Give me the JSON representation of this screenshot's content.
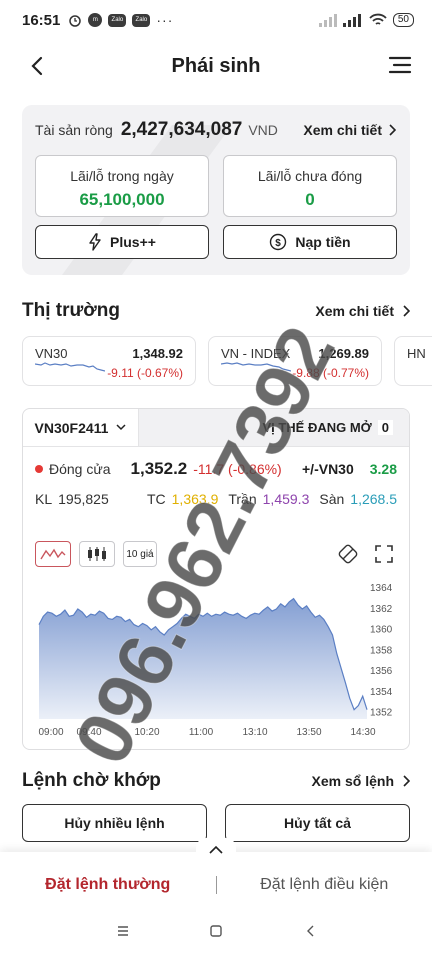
{
  "status_bar": {
    "time": "16:51",
    "battery": "50",
    "zalo_label": "Zalo",
    "more": "···"
  },
  "header": {
    "title": "Phái sinh"
  },
  "assets": {
    "label": "Tài sản ròng",
    "value": "2,427,634,087",
    "unit": "VND",
    "detail_link": "Xem chi tiết",
    "pl_today_label": "Lãi/lỗ trong ngày",
    "pl_today_value": "65,100,000",
    "pl_open_label": "Lãi/lỗ chưa đóng",
    "pl_open_value": "0",
    "plus_button": "Plus++",
    "deposit_button": "Nạp tiền"
  },
  "market": {
    "title": "Thị trường",
    "detail_link": "Xem chi tiết",
    "tickers": [
      {
        "name": "VN30",
        "price": "1,348.92",
        "change": "-9.11 (-0.67%)"
      },
      {
        "name": "VN - INDEX",
        "price": "1,269.89",
        "change": "-9.88 (-0.77%)"
      },
      {
        "name": "HN",
        "price": "",
        "change": ""
      }
    ]
  },
  "derivative": {
    "contract": "VN30F2411",
    "positions_label": "VỊ THẾ ĐANG MỞ",
    "positions_count": "0",
    "close_label": "Đóng cửa",
    "close_value": "1,352.2",
    "close_change": "-11.7 (-0.86%)",
    "basis_label": "+/-VN30",
    "basis_value": "3.28",
    "volume_label": "KL",
    "volume_value": "195,825",
    "ref_label": "TC",
    "ref_value": "1,363.9",
    "ceiling_label": "Trần",
    "ceiling_value": "1,459.3",
    "floor_label": "Sàn",
    "floor_value": "1,268.5",
    "interval_label": "10 giá"
  },
  "chart_data": {
    "type": "area",
    "title": "",
    "xlabel": "",
    "ylabel": "",
    "x_ticks": [
      "09:00",
      "09:40",
      "10:20",
      "11:00",
      "13:10",
      "13:50",
      "14:30"
    ],
    "y_ticks": [
      1364,
      1362,
      1360,
      1358,
      1356,
      1354,
      1352
    ],
    "ylim": [
      1351.3,
      1364.6
    ],
    "grid": false,
    "color": "#5b7fc4",
    "series": [
      {
        "values": [
          1360.4,
          1361.2,
          1361.6,
          1361.5,
          1361.2,
          1361.4,
          1361.8,
          1361.2,
          1361.3,
          1361.9,
          1361.6,
          1361.1,
          1361.4,
          1361.3,
          1361.7,
          1361.5,
          1361.0,
          1360.9,
          1361.2,
          1361.1,
          1360.7,
          1360.9,
          1360.4,
          1360.2,
          1360.5,
          1360.3,
          1359.9,
          1360.2,
          1359.7,
          1359.4,
          1359.9,
          1360.2,
          1360.5,
          1361.0,
          1361.4,
          1361.2,
          1361.0,
          1361.4,
          1361.2,
          1361.5,
          1361.2,
          1361.4,
          1361.3,
          1361.6,
          1361.4,
          1361.3,
          1361.5,
          1361.2,
          1361.0,
          1361.3,
          1361.5,
          1361.4,
          1361.8,
          1362.1,
          1361.7,
          1361.9,
          1362.4,
          1362.1,
          1362.6,
          1362.9,
          1362.3,
          1361.9,
          1362.2,
          1361.6,
          1361.1,
          1361.3,
          1360.9,
          1360.2,
          1359.4,
          1357.6,
          1356.2,
          1354.8,
          1353.3,
          1352.2,
          1352.6,
          1353.5,
          1352.2
        ]
      }
    ]
  },
  "orders": {
    "title": "Lệnh chờ khớp",
    "detail_link": "Xem sổ lệnh",
    "cancel_many": "Hủy nhiều lệnh",
    "cancel_all": "Hủy tất cả"
  },
  "bottom_tabs": {
    "normal_order": "Đặt lệnh thường",
    "conditional_order": "Đặt lệnh điều kiện"
  },
  "watermark": "096.962.7392"
}
